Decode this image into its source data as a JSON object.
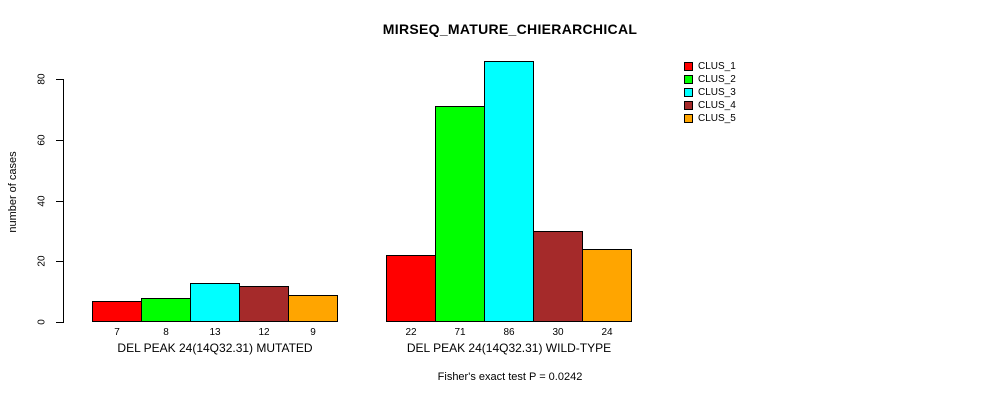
{
  "chart_data": {
    "type": "bar",
    "title": "MIRSEQ_MATURE_CHIERARCHICAL",
    "ylabel": "number of cases",
    "categories": [
      "DEL PEAK 24(14Q32.31) MUTATED",
      "DEL PEAK 24(14Q32.31) WILD-TYPE"
    ],
    "series": [
      {
        "name": "CLUS_1",
        "color": "#FF0000",
        "values": [
          7,
          22
        ]
      },
      {
        "name": "CLUS_2",
        "color": "#00FF00",
        "values": [
          8,
          71
        ]
      },
      {
        "name": "CLUS_3",
        "color": "#00FFFF",
        "values": [
          13,
          86
        ]
      },
      {
        "name": "CLUS_4",
        "color": "#A52A2A",
        "values": [
          12,
          30
        ]
      },
      {
        "name": "CLUS_5",
        "color": "#FFA500",
        "values": [
          9,
          24
        ]
      }
    ],
    "yticks": [
      0,
      20,
      40,
      60,
      80
    ],
    "ylim": [
      0,
      86
    ],
    "bar_value_labels_shown": true,
    "legend_position": "top-right",
    "grid": false,
    "annotation": "Fisher's exact test P = 0.0242"
  }
}
